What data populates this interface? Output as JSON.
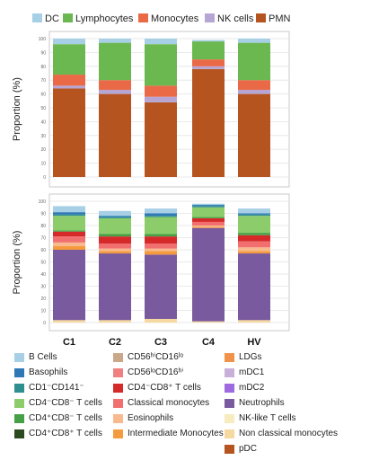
{
  "chart_data": [
    {
      "type": "bar",
      "stacked": true,
      "categories": [
        "C1",
        "C2",
        "C3",
        "C4",
        "HV"
      ],
      "ylabel": "Proportion (%)",
      "ylim": [
        0,
        100
      ],
      "yticks": [
        "0",
        "10",
        "20",
        "30",
        "40",
        "50",
        "60",
        "70",
        "80",
        "90",
        "100"
      ],
      "grid": true,
      "legend_position": "top",
      "series": [
        {
          "name": "PMN",
          "color": "#b5541f",
          "values": [
            64,
            60,
            54,
            78,
            60
          ]
        },
        {
          "name": "NK cells",
          "color": "#b7a6d3",
          "values": [
            2,
            3,
            4,
            2,
            3
          ]
        },
        {
          "name": "Monocytes",
          "color": "#ea6a47",
          "values": [
            8,
            7,
            8,
            5,
            7
          ]
        },
        {
          "name": "Lymphocytes",
          "color": "#6ab84f",
          "values": [
            22,
            27,
            30,
            13,
            27
          ]
        },
        {
          "name": "DC",
          "color": "#a7cfe6",
          "values": [
            4,
            3,
            4,
            1,
            3
          ]
        }
      ]
    },
    {
      "type": "bar",
      "stacked": true,
      "categories": [
        "C1",
        "C2",
        "C3",
        "C4",
        "HV"
      ],
      "ylabel": "Proportion (%)",
      "ylim": [
        0,
        100
      ],
      "yticks": [
        "0",
        "10",
        "20",
        "30",
        "40",
        "50",
        "60",
        "70",
        "80",
        "90",
        "100"
      ],
      "grid": true,
      "legend_position": "bottom",
      "series": [
        {
          "name": "Non classical monocytes",
          "color": "#f5d9a0",
          "values": [
            2,
            2,
            3,
            1,
            2
          ]
        },
        {
          "name": "Neutrophils",
          "color": "#7a5a9e",
          "values": [
            58,
            55,
            53,
            77,
            55
          ]
        },
        {
          "name": "Intermediate Monocytes",
          "color": "#f59a3d",
          "values": [
            3,
            2,
            3,
            1,
            2
          ]
        },
        {
          "name": "Eosinophils",
          "color": "#f9b98f",
          "values": [
            3,
            2,
            2,
            1,
            3
          ]
        },
        {
          "name": "Classical monocytes",
          "color": "#f26f6f",
          "values": [
            5,
            4,
            4,
            3,
            5
          ]
        },
        {
          "name": "CD4⁻CD8⁺ T cells",
          "color": "#d62a2a",
          "values": [
            4,
            6,
            6,
            3,
            5
          ]
        },
        {
          "name": "CD4⁺CD8⁻ T cells",
          "color": "#46a046",
          "values": [
            1,
            2,
            2,
            1,
            2
          ]
        },
        {
          "name": "CD4⁻CD8⁻ T cells",
          "color": "#8ccc6a",
          "values": [
            12,
            13,
            14,
            8,
            14
          ]
        },
        {
          "name": "CD1⁻CD141⁻",
          "color": "#2f8f8f",
          "values": [
            1,
            1,
            1,
            1,
            1
          ]
        },
        {
          "name": "Basophils",
          "color": "#2f78b5",
          "values": [
            2,
            1,
            2,
            1,
            1
          ]
        },
        {
          "name": "B Cells",
          "color": "#a7cfe6",
          "values": [
            5,
            4,
            4,
            1,
            4
          ]
        }
      ]
    }
  ],
  "legend_top": [
    {
      "label": "DC",
      "color": "#a7cfe6"
    },
    {
      "label": "Lymphocytes",
      "color": "#6ab84f"
    },
    {
      "label": "Monocytes",
      "color": "#ea6a47"
    },
    {
      "label": "NK cells",
      "color": "#b7a6d3"
    },
    {
      "label": "PMN",
      "color": "#b5541f"
    }
  ],
  "legend_bottom": {
    "columns": [
      [
        {
          "label": "B Cells",
          "color": "#a7cfe6"
        },
        {
          "label": "Basophils",
          "color": "#2f78b5"
        },
        {
          "label": "CD1⁻CD141⁻",
          "color": "#2f8f8f"
        },
        {
          "label": "CD4⁻CD8⁻ T cells",
          "color": "#8ccc6a"
        },
        {
          "label": "CD4⁺CD8⁻ T cells",
          "color": "#46a046"
        },
        {
          "label": "CD4⁺CD8⁺ T cells",
          "color": "#2c4a1f"
        }
      ],
      [
        {
          "label": "CD56ʰⁱCD16ˡᵒ",
          "color": "#c9a889"
        },
        {
          "label": "CD56ˡᵒCD16ʰⁱ",
          "color": "#f08080"
        },
        {
          "label": "CD4⁻CD8⁺ T cells",
          "color": "#d62a2a"
        },
        {
          "label": "Classical monocytes",
          "color": "#f26f6f"
        },
        {
          "label": "Eosinophils",
          "color": "#f9b98f"
        },
        {
          "label": "Intermediate Monocytes",
          "color": "#f59a3d"
        }
      ],
      [
        {
          "label": "LDGs",
          "color": "#f0924a"
        },
        {
          "label": "mDC1",
          "color": "#c8b0d9"
        },
        {
          "label": "mDC2",
          "color": "#9d6ae0"
        },
        {
          "label": "Neutrophils",
          "color": "#7a5a9e"
        },
        {
          "label": "NK-like T cells",
          "color": "#f7ecc0"
        },
        {
          "label": "Non classical monocytes",
          "color": "#f5d9a0"
        },
        {
          "label": "pDC",
          "color": "#b5541f"
        }
      ]
    ]
  }
}
